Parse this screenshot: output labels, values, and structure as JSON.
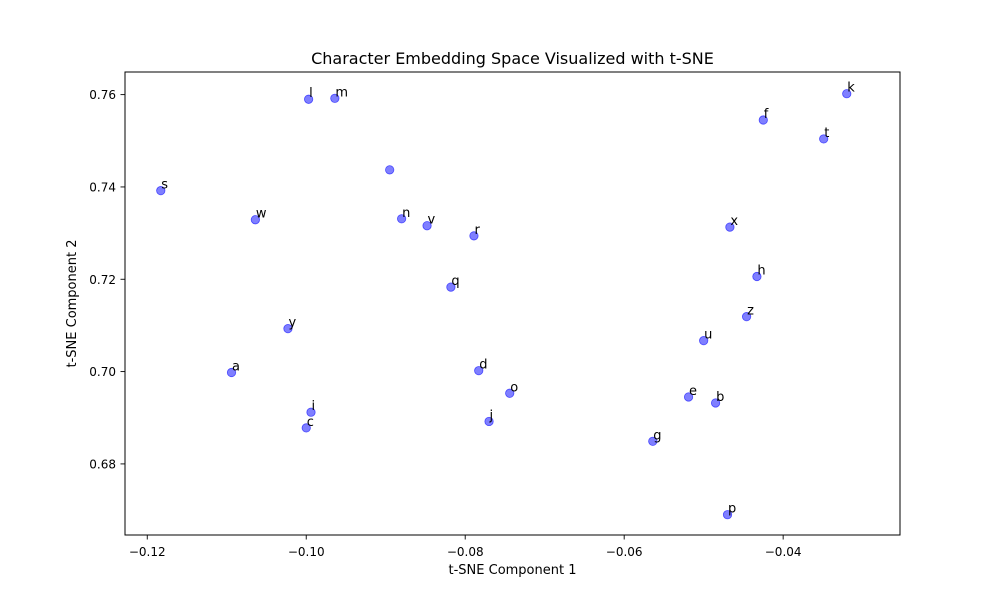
{
  "chart_data": {
    "type": "scatter",
    "title": "Character Embedding Space Visualized with t-SNE",
    "xlabel": "t-SNE Component 1",
    "ylabel": "t-SNE Component 2",
    "xlim": [
      -0.1228,
      -0.0253
    ],
    "ylim": [
      0.6646,
      0.7649
    ],
    "xticks": [
      -0.12,
      -0.1,
      -0.08,
      -0.06,
      -0.04
    ],
    "xtick_labels": [
      "−0.12",
      "−0.10",
      "−0.08",
      "−0.06",
      "−0.04"
    ],
    "yticks": [
      0.68,
      0.7,
      0.72,
      0.74,
      0.76
    ],
    "ytick_labels": [
      "0.68",
      "0.70",
      "0.72",
      "0.74",
      "0.76"
    ],
    "grid": false,
    "point_color": "#0000ff",
    "point_opacity": 0.5,
    "points": [
      {
        "label": "s",
        "x": -0.1183,
        "y": 0.7392
      },
      {
        "label": "w",
        "x": -0.1064,
        "y": 0.7329
      },
      {
        "label": "a",
        "x": -0.1094,
        "y": 0.6998
      },
      {
        "label": "y",
        "x": -0.1023,
        "y": 0.7093
      },
      {
        "label": "l",
        "x": -0.0997,
        "y": 0.759
      },
      {
        "label": "m",
        "x": -0.0964,
        "y": 0.7592
      },
      {
        "label": "i",
        "x": -0.0994,
        "y": 0.6912
      },
      {
        "label": "c",
        "x": -0.1,
        "y": 0.6878
      },
      {
        "label": "",
        "x": -0.0895,
        "y": 0.7437
      },
      {
        "label": "n",
        "x": -0.088,
        "y": 0.7331
      },
      {
        "label": "v",
        "x": -0.0848,
        "y": 0.7316
      },
      {
        "label": "r",
        "x": -0.0789,
        "y": 0.7294
      },
      {
        "label": "q",
        "x": -0.0818,
        "y": 0.7183
      },
      {
        "label": "d",
        "x": -0.0783,
        "y": 0.7002
      },
      {
        "label": "o",
        "x": -0.0744,
        "y": 0.6953
      },
      {
        "label": "j",
        "x": -0.077,
        "y": 0.6892
      },
      {
        "label": "g",
        "x": -0.0564,
        "y": 0.6849
      },
      {
        "label": "e",
        "x": -0.0519,
        "y": 0.6945
      },
      {
        "label": "b",
        "x": -0.0485,
        "y": 0.6932
      },
      {
        "label": "u",
        "x": -0.05,
        "y": 0.7067
      },
      {
        "label": "p",
        "x": -0.047,
        "y": 0.669
      },
      {
        "label": "x",
        "x": -0.0467,
        "y": 0.7313
      },
      {
        "label": "h",
        "x": -0.0433,
        "y": 0.7206
      },
      {
        "label": "z",
        "x": -0.0446,
        "y": 0.7119
      },
      {
        "label": "f",
        "x": -0.0425,
        "y": 0.7545
      },
      {
        "label": "t",
        "x": -0.0349,
        "y": 0.7504
      },
      {
        "label": "k",
        "x": -0.032,
        "y": 0.7602
      }
    ]
  }
}
